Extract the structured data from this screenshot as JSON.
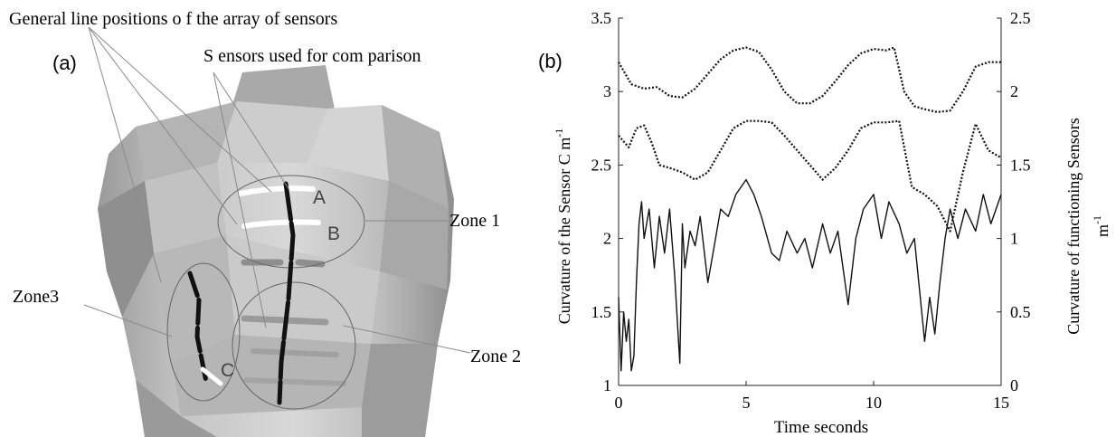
{
  "panel_a": {
    "label": "(a)",
    "callout_general": "General line positions o f the array of sensors",
    "callout_sensors": "S ensors used for com parison",
    "sensor_a": "A",
    "sensor_b": "B",
    "sensor_c": "C",
    "zone1": "Zone 1",
    "zone2": "Zone 2",
    "zone3": "Zone3"
  },
  "panel_b": {
    "label": "(b)"
  },
  "chart_data": {
    "type": "line",
    "xlabel": "Time seconds",
    "ylabel_left": "Curvature of the Sensor C m",
    "ylabel_left_sup": "-1",
    "ylabel_right": "Curvature of functioning Sensors",
    "ylabel_right_unit": "m",
    "ylabel_right_sup": "-1",
    "xlim": [
      0,
      15
    ],
    "ylim_left": [
      1,
      3.5
    ],
    "ylim_right": [
      0,
      2.5
    ],
    "xticks": [
      "0",
      "5",
      "10",
      "15"
    ],
    "yticks_left": [
      "1",
      "1.5",
      "2",
      "2.5",
      "3",
      "3.5"
    ],
    "yticks_right": [
      "0",
      "0.5",
      "1",
      "1.5",
      "2",
      "2.5"
    ],
    "grid": false,
    "series": [
      {
        "axis": "right",
        "style": "dotted",
        "x": [
          0,
          0.5,
          1,
          1.5,
          2,
          2.5,
          3,
          3.5,
          4,
          4.5,
          5,
          5.5,
          6,
          6.5,
          7,
          7.5,
          8,
          8.5,
          9,
          9.5,
          10,
          10.5,
          10.8,
          11.2,
          11.6,
          12,
          12.5,
          13,
          13.5,
          14,
          14.5,
          15
        ],
        "values": [
          2.2,
          2.05,
          2.02,
          2.03,
          1.97,
          1.96,
          2.02,
          2.12,
          2.22,
          2.28,
          2.3,
          2.27,
          2.15,
          2.0,
          1.92,
          1.92,
          1.97,
          2.07,
          2.18,
          2.26,
          2.29,
          2.28,
          2.3,
          2.0,
          1.9,
          1.88,
          1.86,
          1.87,
          2.0,
          2.17,
          2.2,
          2.2
        ]
      },
      {
        "axis": "left",
        "style": "dotted",
        "x": [
          0,
          0.4,
          0.7,
          1,
          1.3,
          1.6,
          2,
          2.5,
          3,
          3.5,
          4,
          4.5,
          5,
          5.5,
          6,
          6.5,
          7,
          7.5,
          8,
          8.5,
          9,
          9.5,
          10,
          10.5,
          11,
          11.5,
          12,
          12.5,
          13,
          13.5,
          14,
          14.5,
          15
        ],
        "values": [
          2.7,
          2.62,
          2.75,
          2.77,
          2.65,
          2.5,
          2.48,
          2.45,
          2.4,
          2.45,
          2.6,
          2.75,
          2.8,
          2.8,
          2.79,
          2.7,
          2.6,
          2.5,
          2.4,
          2.48,
          2.6,
          2.75,
          2.79,
          2.79,
          2.8,
          2.35,
          2.3,
          2.22,
          2.05,
          2.45,
          2.78,
          2.6,
          2.55
        ]
      },
      {
        "axis": "left",
        "style": "solid",
        "x": [
          0,
          0.1,
          0.2,
          0.3,
          0.4,
          0.5,
          0.6,
          0.7,
          0.8,
          0.9,
          1.0,
          1.2,
          1.4,
          1.6,
          1.8,
          2.0,
          2.2,
          2.4,
          2.5,
          2.6,
          2.8,
          3.0,
          3.2,
          3.5,
          3.8,
          4.0,
          4.3,
          4.6,
          5.0,
          5.3,
          5.6,
          6.0,
          6.3,
          6.6,
          7.0,
          7.3,
          7.6,
          8.0,
          8.3,
          8.6,
          9.0,
          9.3,
          9.6,
          10.0,
          10.3,
          10.6,
          11.0,
          11.3,
          11.6,
          12.0,
          12.2,
          12.4,
          12.6,
          12.8,
          13.0,
          13.3,
          13.6,
          14.0,
          14.3,
          14.6,
          15.0
        ],
        "values": [
          1.6,
          1.1,
          1.5,
          1.3,
          1.45,
          1.1,
          1.2,
          1.7,
          2.1,
          2.25,
          2.0,
          2.2,
          1.8,
          2.15,
          1.9,
          2.2,
          1.75,
          1.15,
          2.1,
          1.8,
          2.05,
          1.95,
          2.15,
          1.7,
          2.0,
          2.2,
          2.15,
          2.3,
          2.4,
          2.3,
          2.15,
          1.9,
          1.85,
          2.05,
          1.9,
          2.0,
          1.8,
          2.1,
          1.9,
          2.05,
          1.55,
          2.0,
          2.2,
          2.3,
          2.0,
          2.25,
          2.1,
          1.9,
          2.0,
          1.3,
          1.6,
          1.35,
          1.7,
          2.0,
          2.2,
          2.0,
          2.2,
          2.05,
          2.3,
          2.1,
          2.3
        ]
      }
    ]
  }
}
